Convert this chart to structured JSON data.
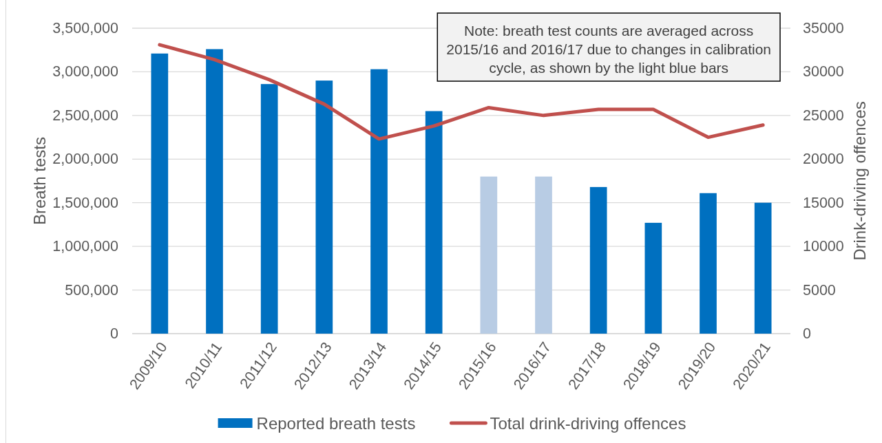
{
  "chart_data": {
    "type": "bar",
    "categories": [
      "2009/10",
      "2010/11",
      "2011/12",
      "2012/13",
      "2013/14",
      "2014/15",
      "2015/16",
      "2016/17",
      "2017/18",
      "2018/19",
      "2019/20",
      "2020/21"
    ],
    "series": [
      {
        "name": "Reported breath tests",
        "color": "#0070c0",
        "colors": [
          "#0070c0",
          "#0070c0",
          "#0070c0",
          "#0070c0",
          "#0070c0",
          "#0070c0",
          "#b8cce4",
          "#b8cce4",
          "#0070c0",
          "#0070c0",
          "#0070c0",
          "#0070c0"
        ],
        "values": [
          3210000,
          3260000,
          2860000,
          2900000,
          3030000,
          2550000,
          1800000,
          1800000,
          1680000,
          1270000,
          1610000,
          1500000
        ]
      },
      {
        "name": "Total drink-driving offences",
        "type": "line",
        "axis": "y2",
        "color": "#c0504d",
        "values": [
          33100,
          31400,
          29100,
          26300,
          22300,
          23800,
          25900,
          25000,
          25700,
          25700,
          22500,
          23900
        ]
      }
    ],
    "ylim": [
      0,
      3500000
    ],
    "yticks": [
      0,
      {
        "value": 500000,
        "label": "500,000"
      },
      {
        "value": 1000000,
        "label": "1,000,000"
      },
      {
        "value": 1500000,
        "label": "1,500,000"
      },
      {
        "value": 2000000,
        "label": "2,000,000"
      },
      {
        "value": 2500000,
        "label": "2,500,000"
      },
      {
        "value": 3000000,
        "label": "3,000,000"
      },
      {
        "value": 3500000,
        "label": "3,500,000"
      }
    ],
    "y2lim": [
      0,
      35000
    ],
    "y2ticks": [
      0,
      5000,
      10000,
      15000,
      20000,
      25000,
      30000,
      35000
    ],
    "ylabel": "Breath tests",
    "y2label": "Drink-driving offences",
    "annotations": [
      "Note: breath test counts are averaged across 2015/16 and 2016/17 due to changes in calibration cycle, as shown by the light blue bars"
    ],
    "grid": "y",
    "legend": "bottom"
  }
}
